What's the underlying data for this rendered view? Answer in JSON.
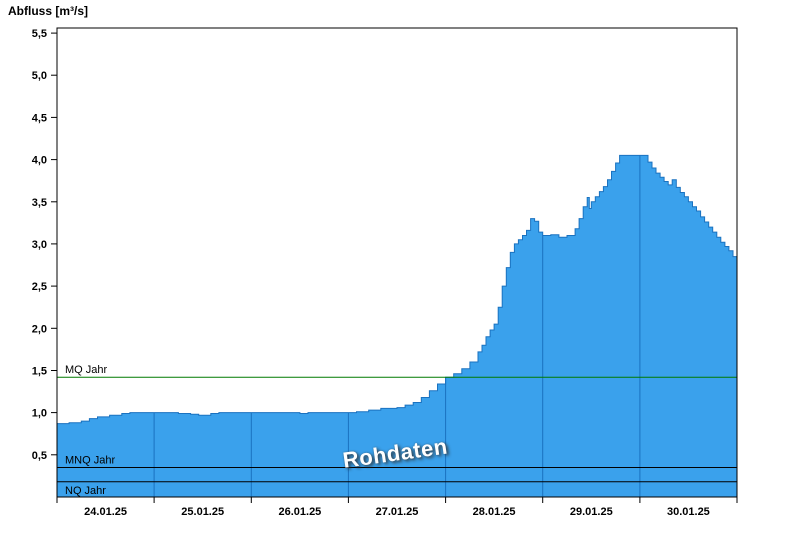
{
  "header": {
    "title": "Abfluss [m³/s]"
  },
  "watermark": "Rohdaten",
  "chart_data": {
    "type": "area",
    "step": true,
    "title": "Abfluss [m³/s]",
    "series_name": "Rohdaten",
    "x_unit": "hours since 24.01.25 00:00",
    "x_range_hours": [
      0,
      168
    ],
    "day_labels": [
      "24.01.25",
      "25.01.25",
      "26.01.25",
      "27.01.25",
      "28.01.25",
      "29.01.25",
      "30.01.25"
    ],
    "day_boundaries_hours": [
      24,
      48,
      72,
      96,
      120,
      144
    ],
    "ylim": [
      0,
      5.56
    ],
    "grid": false,
    "y_ticks": {
      "values": [
        0.5,
        1.0,
        1.5,
        2.0,
        2.5,
        3.0,
        3.5,
        4.0,
        4.5,
        5.0,
        5.5
      ],
      "labels": [
        "0,5",
        "1,0",
        "1,5",
        "2,0",
        "2,5",
        "3,0",
        "3,5",
        "4,0",
        "4,5",
        "5,0",
        "5,5"
      ]
    },
    "series": [
      {
        "name": "Rohdaten",
        "points": [
          [
            0,
            0.87
          ],
          [
            3,
            0.88
          ],
          [
            6,
            0.9
          ],
          [
            8,
            0.93
          ],
          [
            10,
            0.95
          ],
          [
            13,
            0.97
          ],
          [
            16,
            0.99
          ],
          [
            18,
            1.0
          ],
          [
            26,
            1.0
          ],
          [
            30,
            0.99
          ],
          [
            33,
            0.98
          ],
          [
            35,
            0.97
          ],
          [
            38,
            0.99
          ],
          [
            40,
            1.0
          ],
          [
            58,
            1.0
          ],
          [
            60,
            0.99
          ],
          [
            62,
            1.0
          ],
          [
            74,
            1.01
          ],
          [
            77,
            1.03
          ],
          [
            80,
            1.05
          ],
          [
            84,
            1.06
          ],
          [
            86,
            1.09
          ],
          [
            88,
            1.12
          ],
          [
            90,
            1.18
          ],
          [
            92,
            1.26
          ],
          [
            94,
            1.34
          ],
          [
            96,
            1.42
          ],
          [
            98,
            1.46
          ],
          [
            100,
            1.52
          ],
          [
            102,
            1.6
          ],
          [
            104,
            1.72
          ],
          [
            105,
            1.8
          ],
          [
            106,
            1.9
          ],
          [
            107,
            1.98
          ],
          [
            108,
            2.05
          ],
          [
            109,
            2.25
          ],
          [
            110,
            2.5
          ],
          [
            111,
            2.72
          ],
          [
            112,
            2.9
          ],
          [
            113,
            3.0
          ],
          [
            114,
            3.05
          ],
          [
            115,
            3.1
          ],
          [
            116,
            3.16
          ],
          [
            117,
            3.3
          ],
          [
            118,
            3.27
          ],
          [
            119,
            3.14
          ],
          [
            120,
            3.1
          ],
          [
            122,
            3.11
          ],
          [
            124,
            3.08
          ],
          [
            126,
            3.1
          ],
          [
            128,
            3.18
          ],
          [
            129,
            3.3
          ],
          [
            130,
            3.44
          ],
          [
            131,
            3.55
          ],
          [
            131.5,
            3.42
          ],
          [
            132,
            3.5
          ],
          [
            133,
            3.56
          ],
          [
            134,
            3.62
          ],
          [
            135,
            3.68
          ],
          [
            136,
            3.76
          ],
          [
            137,
            3.86
          ],
          [
            138,
            3.96
          ],
          [
            139,
            4.05
          ],
          [
            145,
            4.05
          ],
          [
            146,
            3.97
          ],
          [
            147,
            3.9
          ],
          [
            148,
            3.84
          ],
          [
            149,
            3.79
          ],
          [
            150,
            3.74
          ],
          [
            151,
            3.7
          ],
          [
            152,
            3.76
          ],
          [
            153,
            3.67
          ],
          [
            154,
            3.61
          ],
          [
            155,
            3.56
          ],
          [
            156,
            3.5
          ],
          [
            157,
            3.44
          ],
          [
            158,
            3.39
          ],
          [
            159,
            3.32
          ],
          [
            160,
            3.26
          ],
          [
            161,
            3.2
          ],
          [
            162,
            3.14
          ],
          [
            163,
            3.08
          ],
          [
            164,
            3.02
          ],
          [
            165,
            2.97
          ],
          [
            166,
            2.92
          ],
          [
            167,
            2.85
          ],
          [
            168,
            2.8
          ]
        ]
      }
    ],
    "ref_lines": [
      {
        "label": "MQ Jahr",
        "value": 1.42,
        "color": "#007a00",
        "label_position": "above"
      },
      {
        "label": "MNQ Jahr",
        "value": 0.35,
        "color": "#000000",
        "label_position": "above"
      },
      {
        "label": "NQ Jahr",
        "value": 0.18,
        "color": "#000000",
        "label_position": "below"
      }
    ],
    "colors": {
      "fill": "#3aa1ec",
      "outline": "#1a72c0",
      "day_grid": "#1a72c0",
      "axis": "#000000",
      "mq_line": "#007a00"
    }
  }
}
